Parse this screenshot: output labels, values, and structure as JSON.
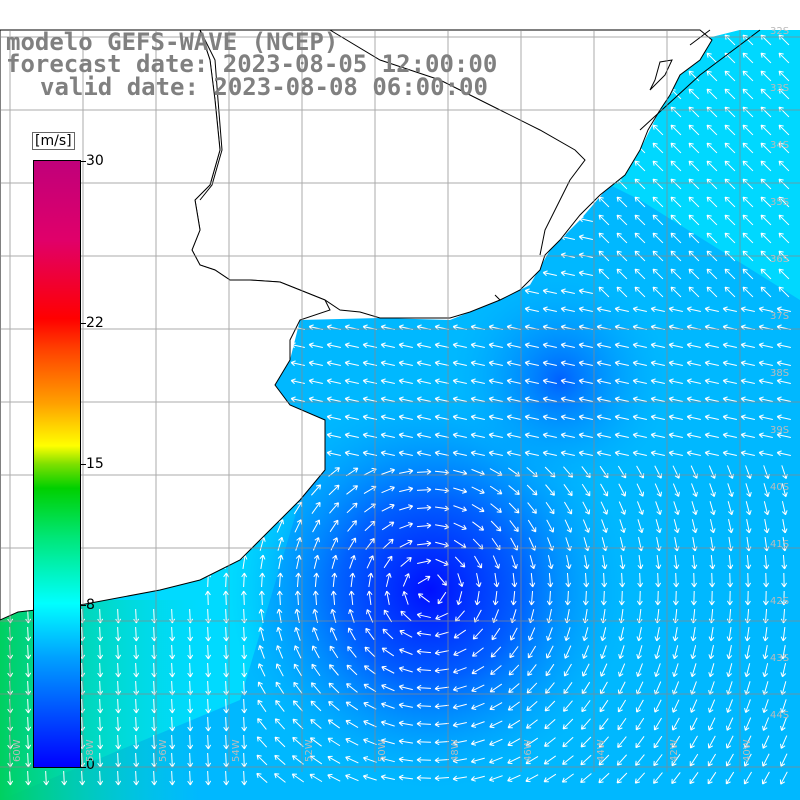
{
  "title": {
    "line1": "modelo GEFS-WAVE (NCEP)",
    "line2": "forecast date: 2023-08-05 12:00:00",
    "line3": "valid date: 2023-08-08 06:00:00"
  },
  "legend": {
    "unit": "[m/s]",
    "ticks": [
      {
        "value": 0,
        "label": "0"
      },
      {
        "value": 8,
        "label": "8"
      },
      {
        "value": 15,
        "label": "15"
      },
      {
        "value": 22,
        "label": "22"
      },
      {
        "value": 30,
        "label": "30"
      }
    ],
    "range": [
      0,
      30
    ],
    "colors": [
      "#0000ff",
      "#00a0ff",
      "#00ffff",
      "#00d000",
      "#ffff00",
      "#ffa000",
      "#ff0000",
      "#c0007a"
    ]
  },
  "axes": {
    "lon_labels": [
      "60W",
      "58W",
      "56W",
      "54W",
      "52W",
      "50W",
      "48W",
      "46W",
      "44W",
      "42W",
      "40W"
    ],
    "lat_labels": [
      "32S",
      "33S",
      "34S",
      "35S",
      "36S",
      "37S",
      "38S",
      "39S",
      "40S",
      "41S",
      "42S",
      "43S",
      "44S"
    ]
  },
  "colors": {
    "land": "#ffffff",
    "coast": "#000000",
    "grid": "#888888",
    "arrow": "#ffffff"
  }
}
